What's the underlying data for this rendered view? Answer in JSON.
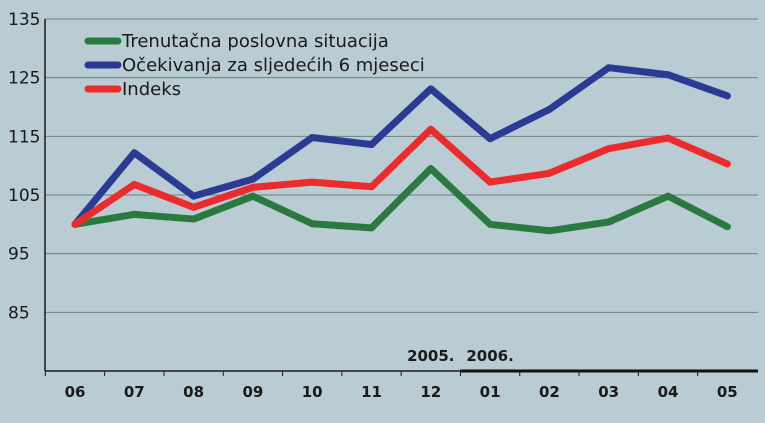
{
  "chart_data": {
    "type": "line",
    "categories": [
      "06",
      "07",
      "08",
      "09",
      "10",
      "11",
      "12",
      "01",
      "02",
      "03",
      "04",
      "05"
    ],
    "year_labels": [
      {
        "label": "2005.",
        "category": "12"
      },
      {
        "label": "2006.",
        "category": "01"
      }
    ],
    "ylim": [
      75,
      135
    ],
    "yticks": [
      85,
      95,
      105,
      115,
      125,
      135
    ],
    "grid": true,
    "legend_position": "top-left",
    "series": [
      {
        "name": "Trenutačna poslovna situacija",
        "color": "#2a7a3f",
        "values": [
          100,
          101.7,
          100.9,
          104.8,
          100.1,
          99.4,
          109.5,
          100.0,
          98.9,
          100.4,
          104.8,
          99.6
        ]
      },
      {
        "name": "Očekivanja za sljedećih 6 mjeseci",
        "color": "#2b3b93",
        "values": [
          100,
          112.2,
          104.8,
          107.7,
          114.8,
          113.6,
          123.1,
          114.6,
          119.6,
          126.7,
          125.5,
          121.9
        ]
      },
      {
        "name": "Indeks",
        "color": "#ec2b2c",
        "values": [
          100,
          106.8,
          102.9,
          106.3,
          107.2,
          106.4,
          116.2,
          107.2,
          108.7,
          112.9,
          114.7,
          110.3
        ]
      }
    ]
  }
}
